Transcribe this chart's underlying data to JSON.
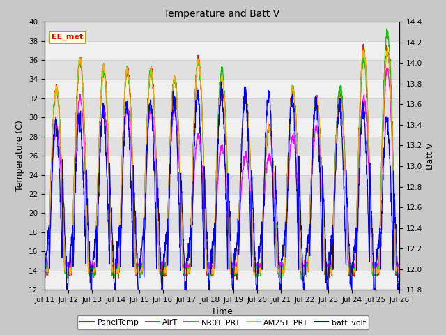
{
  "title": "Temperature and Batt V",
  "xlabel": "Time",
  "ylabel_left": "Temperature (C)",
  "ylabel_right": "Batt V",
  "ylim_left": [
    12,
    40
  ],
  "ylim_right": [
    11.8,
    14.4
  ],
  "annotation": "EE_met",
  "fig_facecolor": "#c8c8c8",
  "ax_facecolor": "#e8e8e8",
  "xtick_labels": [
    "Jul 11",
    "Jul 12",
    "Jul 13",
    "Jul 14",
    "Jul 15",
    "Jul 16",
    "Jul 17",
    "Jul 18",
    "Jul 19",
    "Jul 20",
    "Jul 21",
    "Jul 22",
    "Jul 23",
    "Jul 24",
    "Jul 25",
    "Jul 26"
  ],
  "series": {
    "PanelTemp": {
      "color": "#ff0000"
    },
    "AirT": {
      "color": "#ff00ff"
    },
    "NR01_PRT": {
      "color": "#00cc00"
    },
    "AM25T_PRT": {
      "color": "#ffaa00"
    },
    "batt_volt": {
      "color": "#0000ff"
    }
  },
  "legend_labels": [
    "PanelTemp",
    "AirT",
    "NR01_PRT",
    "AM25T_PRT",
    "batt_volt"
  ],
  "yticks_left": [
    12,
    14,
    16,
    18,
    20,
    22,
    24,
    26,
    28,
    30,
    32,
    34,
    36,
    38,
    40
  ],
  "yticks_right": [
    11.8,
    12.0,
    12.2,
    12.4,
    12.6,
    12.8,
    13.0,
    13.2,
    13.4,
    13.6,
    13.8,
    14.0,
    14.2,
    14.4
  ]
}
